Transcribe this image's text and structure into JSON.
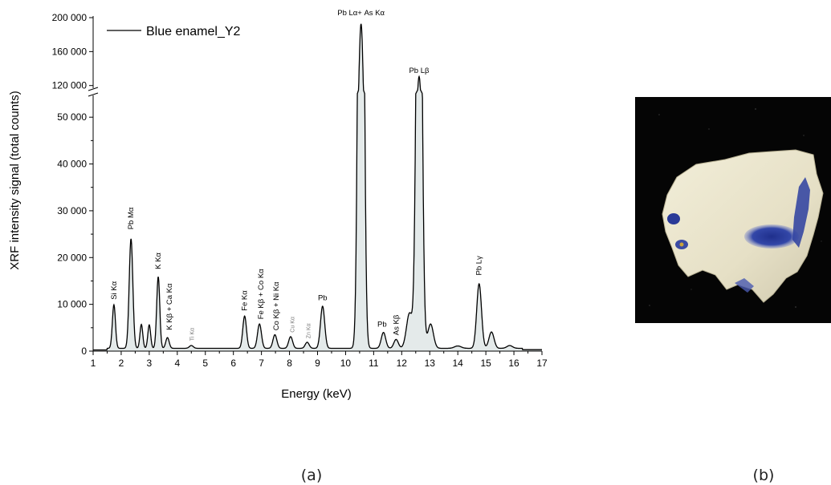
{
  "chart_data": {
    "type": "line",
    "xlabel": "Energy (keV)",
    "ylabel": "XRF intensity signal (total counts)",
    "xlim": [
      1,
      17
    ],
    "x_ticks": [
      "1",
      "2",
      "3",
      "4",
      "5",
      "6",
      "7",
      "8",
      "9",
      "10",
      "11",
      "12",
      "13",
      "14",
      "15",
      "16",
      "17"
    ],
    "y_ticks_lower": [
      "0",
      "10000",
      "20000",
      "30000",
      "40000",
      "50000"
    ],
    "y_ticks_upper": [
      "120000",
      "160000",
      "200000"
    ],
    "y_break": [
      55000,
      115000
    ],
    "y_lower_range": [
      0,
      55000
    ],
    "y_upper_range": [
      115000,
      200000
    ],
    "grid": false,
    "legend_position": "top-left",
    "series": [
      {
        "name": "Blue enamel_Y2",
        "color": "#000000",
        "fill": "#e4eaea",
        "baseline": 600,
        "peaks": [
          {
            "x": 1.74,
            "y": 9300,
            "w": 0.055
          },
          {
            "x": 2.35,
            "y": 23400,
            "w": 0.065
          },
          {
            "x": 2.72,
            "y": 5100,
            "w": 0.05
          },
          {
            "x": 3.0,
            "y": 5000,
            "w": 0.05
          },
          {
            "x": 3.32,
            "y": 15300,
            "w": 0.055
          },
          {
            "x": 3.65,
            "y": 2300,
            "w": 0.06
          },
          {
            "x": 4.5,
            "y": 600,
            "w": 0.07
          },
          {
            "x": 6.4,
            "y": 6900,
            "w": 0.065
          },
          {
            "x": 6.93,
            "y": 5200,
            "w": 0.07
          },
          {
            "x": 7.48,
            "y": 2900,
            "w": 0.07
          },
          {
            "x": 8.04,
            "y": 2500,
            "w": 0.07
          },
          {
            "x": 8.63,
            "y": 1300,
            "w": 0.07
          },
          {
            "x": 9.18,
            "y": 9000,
            "w": 0.075
          },
          {
            "x": 10.55,
            "y": 192000,
            "w": 0.085
          },
          {
            "x": 11.35,
            "y": 3400,
            "w": 0.08
          },
          {
            "x": 11.8,
            "y": 1900,
            "w": 0.08
          },
          {
            "x": 12.28,
            "y": 7500,
            "w": 0.11
          },
          {
            "x": 12.62,
            "y": 130000,
            "w": 0.09
          },
          {
            "x": 13.03,
            "y": 5200,
            "w": 0.1
          },
          {
            "x": 14.0,
            "y": 500,
            "w": 0.12
          },
          {
            "x": 14.76,
            "y": 13800,
            "w": 0.085
          },
          {
            "x": 15.2,
            "y": 3500,
            "w": 0.09
          },
          {
            "x": 15.85,
            "y": 600,
            "w": 0.1
          }
        ]
      }
    ],
    "annotations": [
      {
        "text": "Si Kα",
        "x": 1.74,
        "y": 11000,
        "style": "vertical"
      },
      {
        "text": "Pb Mα",
        "x": 2.35,
        "y": 26000,
        "style": "vertical"
      },
      {
        "text": "K Kα",
        "x": 3.32,
        "y": 17500,
        "style": "vertical"
      },
      {
        "text": "K Kβ + Ca Kα",
        "x": 3.72,
        "y": 4500,
        "style": "vertical"
      },
      {
        "text": "Ti Kα",
        "x": 4.5,
        "y": 2200,
        "style": "vertical-small"
      },
      {
        "text": "Fe Kα",
        "x": 6.4,
        "y": 8600,
        "style": "vertical"
      },
      {
        "text": "Fe Kβ + Co Kα",
        "x": 6.98,
        "y": 6800,
        "style": "vertical"
      },
      {
        "text": "Co Kβ + Ni Kα",
        "x": 7.53,
        "y": 4400,
        "style": "vertical"
      },
      {
        "text": "Cu Kα",
        "x": 8.08,
        "y": 4000,
        "style": "vertical-small"
      },
      {
        "text": "Zn Kα",
        "x": 8.66,
        "y": 2700,
        "style": "vertical-small"
      },
      {
        "text": "Pb",
        "x": 9.18,
        "y": 10500,
        "style": "horizontal"
      },
      {
        "text": "Pb Lα+ As Kα",
        "x": 10.55,
        "y": 200000,
        "style": "horizontal-top"
      },
      {
        "text": "Pb",
        "x": 11.3,
        "y": 4900,
        "style": "horizontal"
      },
      {
        "text": "As Kβ",
        "x": 11.8,
        "y": 3400,
        "style": "vertical"
      },
      {
        "text": "Pb Lβ",
        "x": 12.62,
        "y": 133000,
        "style": "horizontal"
      },
      {
        "text": "Pb Lγ",
        "x": 14.76,
        "y": 16200,
        "style": "vertical"
      }
    ]
  },
  "captions": {
    "a": "(a)",
    "b": "(b)"
  },
  "photo": {
    "icon": "enamel-fragment-photo",
    "background": "#050505",
    "fragment_color": "#e9e4cf",
    "stain_color": "#2a3d9a"
  }
}
